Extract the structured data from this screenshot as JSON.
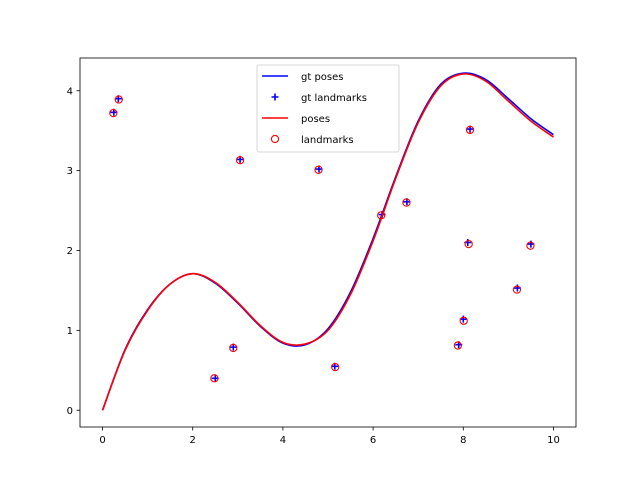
{
  "chart_data": {
    "type": "line",
    "title": "",
    "xlabel": "",
    "ylabel": "",
    "xlim": [
      -0.5,
      10.5
    ],
    "ylim": [
      -0.21,
      4.41
    ],
    "xticks": [
      0,
      2,
      4,
      6,
      8,
      10
    ],
    "yticks": [
      0,
      1,
      2,
      3,
      4
    ],
    "grid": false,
    "legend_position": "upper-center",
    "series": [
      {
        "name": "gt poses",
        "kind": "line",
        "color": "#0000ff",
        "x": [
          0,
          0.5,
          1,
          1.5,
          2,
          2.5,
          3,
          3.5,
          4,
          4.5,
          5,
          5.5,
          6,
          6.5,
          7,
          7.5,
          8,
          8.5,
          9,
          9.5,
          10
        ],
        "y": [
          0,
          0.76,
          1.26,
          1.58,
          1.71,
          1.59,
          1.34,
          1.05,
          0.84,
          0.82,
          1.02,
          1.48,
          2.15,
          2.92,
          3.62,
          4.08,
          4.22,
          4.14,
          3.9,
          3.65,
          3.45
        ]
      },
      {
        "name": "gt landmarks",
        "kind": "scatter",
        "marker": "plus",
        "color": "#0000ff",
        "x": [
          0.25,
          0.35,
          3.05,
          4.8,
          6.2,
          6.75,
          8.15,
          2.5,
          2.9,
          5.15,
          8.1,
          9.5,
          9.2,
          8.0,
          7.9
        ],
        "y": [
          3.73,
          3.9,
          3.14,
          3.02,
          2.45,
          2.61,
          3.52,
          0.4,
          0.79,
          0.55,
          2.1,
          2.08,
          1.53,
          1.14,
          0.82
        ]
      },
      {
        "name": "poses",
        "kind": "line",
        "color": "#ff0000",
        "x": [
          0,
          0.5,
          1,
          1.5,
          2,
          2.5,
          3,
          3.5,
          4,
          4.5,
          5,
          5.5,
          6,
          6.5,
          7,
          7.5,
          8,
          8.5,
          9,
          9.5,
          10
        ],
        "y": [
          0,
          0.75,
          1.25,
          1.58,
          1.71,
          1.6,
          1.35,
          1.06,
          0.85,
          0.83,
          1.0,
          1.45,
          2.12,
          2.9,
          3.6,
          4.06,
          4.21,
          4.12,
          3.87,
          3.62,
          3.42
        ]
      },
      {
        "name": "landmarks",
        "kind": "scatter",
        "marker": "circle",
        "color": "#ff0000",
        "x": [
          0.24,
          0.36,
          3.05,
          4.79,
          6.18,
          6.74,
          8.15,
          2.48,
          2.9,
          5.16,
          8.12,
          9.49,
          9.19,
          8.01,
          7.88
        ],
        "y": [
          3.72,
          3.89,
          3.13,
          3.01,
          2.44,
          2.6,
          3.51,
          0.4,
          0.78,
          0.54,
          2.08,
          2.06,
          1.51,
          1.12,
          0.81
        ]
      }
    ]
  }
}
